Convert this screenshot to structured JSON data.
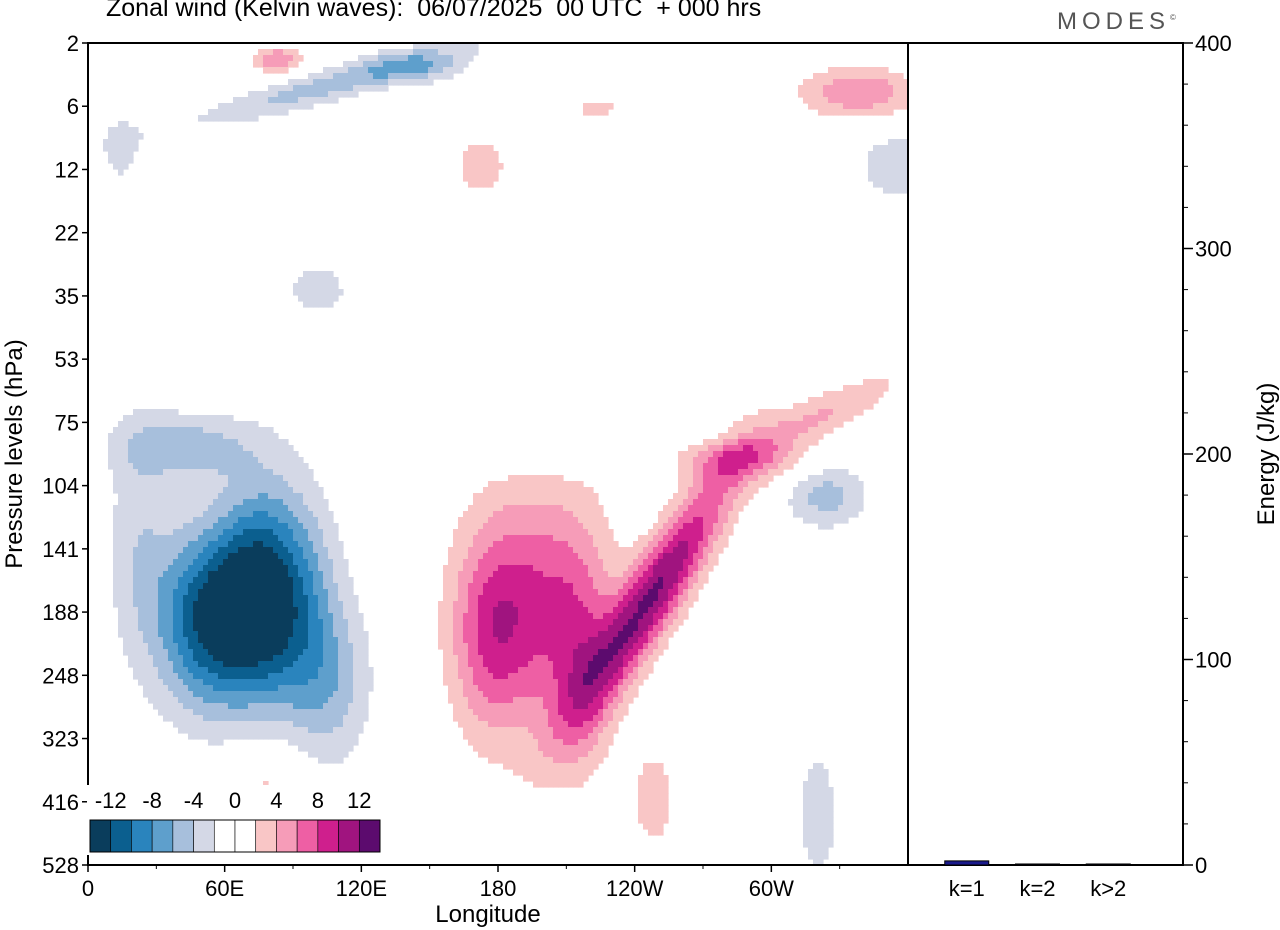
{
  "header": {
    "title": "Zonal wind (Kelvin waves):  06/07/2025  00 UTC  + 000 hrs",
    "brand": "MODES",
    "brand_mark": "©"
  },
  "chart_data": [
    {
      "type": "heatmap",
      "title": "Zonal wind (Kelvin waves):  06/07/2025  00 UTC  + 000 hrs",
      "xlabel": "Longitude",
      "ylabel": "Pressure levels (hPa)",
      "x_ticks": [
        "0",
        "60E",
        "120E",
        "180",
        "120W",
        "60W"
      ],
      "x_tick_degrees": [
        0,
        60,
        120,
        180,
        240,
        300
      ],
      "xlim": [
        0,
        360
      ],
      "y_ticks": [
        "2",
        "6",
        "12",
        "22",
        "35",
        "53",
        "75",
        "104",
        "141",
        "188",
        "248",
        "323",
        "416",
        "528"
      ],
      "colorbar": {
        "labels": [
          "-12",
          "-8",
          "-4",
          "0",
          "4",
          "8",
          "12"
        ],
        "levels": [
          -14,
          -12,
          -10,
          -8,
          -6,
          -4,
          -2,
          0,
          2,
          4,
          6,
          8,
          10,
          12,
          14
        ],
        "colors": [
          "#0a3d5c",
          "#0b5f8f",
          "#2a84bd",
          "#5e9fcc",
          "#a7bfdc",
          "#d4d8e6",
          "#ffffff",
          "#ffffff",
          "#f9c6c6",
          "#f69cb8",
          "#ee5fa4",
          "#cf1f8d",
          "#a0147f",
          "#5c0b6e"
        ]
      },
      "features": [
        {
          "name": "negative anomaly core",
          "lon": 45,
          "pressure": 188,
          "value": -12
        },
        {
          "name": "negative anomaly secondary core",
          "lon": 90,
          "pressure": 141,
          "value": -8
        },
        {
          "name": "positive anomaly core",
          "lon": 245,
          "pressure": 188,
          "value": 10
        },
        {
          "name": "positive anomaly core",
          "lon": 205,
          "pressure": 141,
          "value": 6
        },
        {
          "name": "upper-level positive band",
          "lon": 290,
          "pressure": 75,
          "value": 6
        },
        {
          "name": "stratospheric negative band",
          "lon": 140,
          "pressure": 6,
          "value": -6
        },
        {
          "name": "stratospheric positive band",
          "lon": 340,
          "pressure": 6,
          "value": 6
        }
      ]
    },
    {
      "type": "bar",
      "ylabel": "Energy (J/kg)",
      "categories": [
        "k=1",
        "k=2",
        "k>2"
      ],
      "values": [
        2,
        0.5,
        0.5
      ],
      "ylim": [
        0,
        400
      ],
      "y_ticks": [
        "0",
        "100",
        "200",
        "300",
        "400"
      ],
      "colors": [
        "#1a1a8c",
        "#1a1a8c",
        "#1a1a8c"
      ]
    }
  ]
}
